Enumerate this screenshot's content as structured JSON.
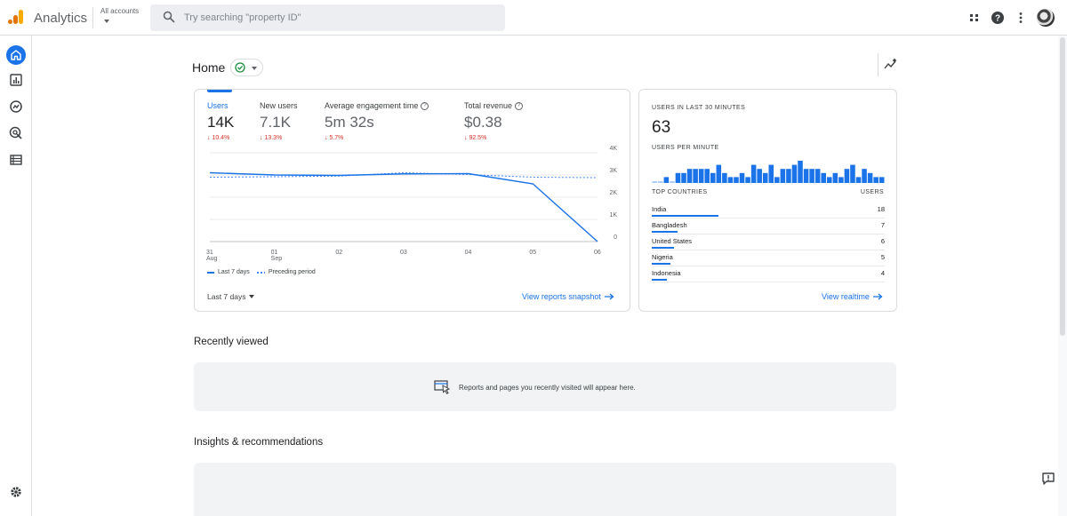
{
  "header": {
    "app_title": "Analytics",
    "account_label": "All accounts",
    "search_placeholder": "Try searching \"property ID\"",
    "icons": [
      "apps-grid-icon",
      "help-icon",
      "more-vert-icon",
      "avatar"
    ]
  },
  "nav": {
    "items": [
      "home-icon",
      "reports-icon",
      "explore-icon",
      "advertising-icon",
      "configure-icon"
    ],
    "bottom": "settings-icon"
  },
  "page": {
    "title": "Home"
  },
  "overview": {
    "metrics": [
      {
        "label": "Users",
        "value": "14K",
        "change": "10.4%"
      },
      {
        "label": "New users",
        "value": "7.1K",
        "change": "13.3%"
      },
      {
        "label": "Average engagement time",
        "value": "5m 32s",
        "change": "5.7%"
      },
      {
        "label": "Total revenue",
        "value": "$0.38",
        "change": "92.5%"
      }
    ],
    "legend_current": "Last 7 days",
    "legend_previous": "Preceding period",
    "date_range": "Last 7 days",
    "link": "View reports snapshot"
  },
  "chart_data": {
    "type": "line",
    "x": [
      "31 Aug",
      "01 Sep",
      "02",
      "03",
      "04",
      "05",
      "06"
    ],
    "x_ticks": [
      [
        "31",
        "Aug"
      ],
      [
        "01",
        "Sep"
      ],
      [
        "02",
        ""
      ],
      [
        "03",
        ""
      ],
      [
        "04",
        ""
      ],
      [
        "05",
        ""
      ],
      [
        "06",
        ""
      ]
    ],
    "series": [
      {
        "name": "Last 7 days",
        "values": [
          3100,
          3000,
          2980,
          3050,
          3060,
          2600,
          0
        ],
        "style": "solid",
        "color": "#1a73e8"
      },
      {
        "name": "Preceding period",
        "values": [
          2900,
          2920,
          2950,
          3100,
          3020,
          2900,
          2880
        ],
        "style": "dashed",
        "color": "#4285f4"
      }
    ],
    "y_ticks": [
      "4K",
      "3K",
      "2K",
      "1K",
      "0"
    ],
    "ylim": [
      0,
      4000
    ],
    "grid": true
  },
  "realtime": {
    "title": "USERS IN LAST 30 MINUTES",
    "value": "63",
    "per_minute_label": "USERS PER MINUTE",
    "per_minute": [
      0,
      0,
      1,
      0,
      2,
      2,
      3,
      3,
      3,
      3,
      2,
      4,
      2,
      1,
      1,
      2,
      1,
      4,
      3,
      2,
      4,
      1,
      3,
      3,
      4,
      5,
      3,
      3,
      3,
      2,
      1,
      2,
      1,
      3,
      4,
      1,
      3,
      2,
      1,
      1
    ],
    "countries_header": "TOP COUNTRIES",
    "users_header": "USERS",
    "countries": [
      {
        "name": "India",
        "users": "18",
        "share": 1.0
      },
      {
        "name": "Bangladesh",
        "users": "7",
        "share": 0.39
      },
      {
        "name": "United States",
        "users": "6",
        "share": 0.33
      },
      {
        "name": "Nigeria",
        "users": "5",
        "share": 0.28
      },
      {
        "name": "Indonesia",
        "users": "4",
        "share": 0.22
      }
    ],
    "link": "View realtime",
    "bar_color": "#1a73e8"
  },
  "recently_viewed": {
    "title": "Recently viewed",
    "message": "Reports and pages you recently visited will appear here."
  },
  "insights": {
    "title": "Insights & recommendations"
  }
}
